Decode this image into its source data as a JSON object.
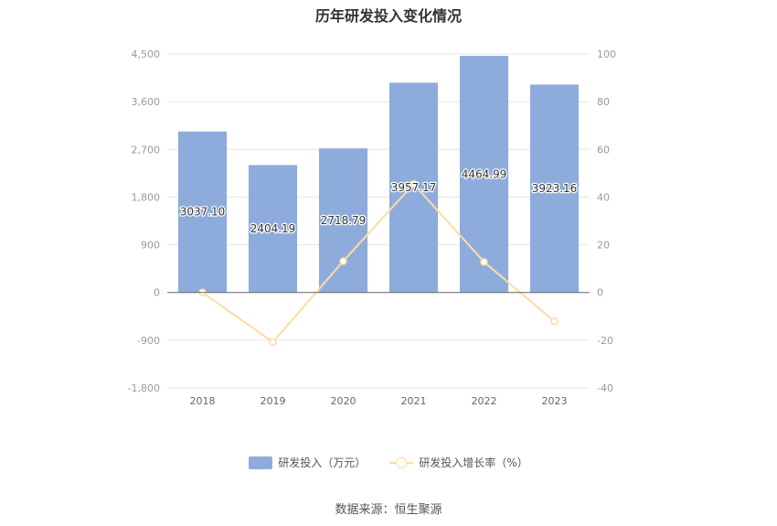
{
  "title": "历年研发投入变化情况",
  "source": "数据来源：恒生聚源",
  "chart_data": {
    "type": "bar",
    "categories": [
      "2018",
      "2019",
      "2020",
      "2021",
      "2022",
      "2023"
    ],
    "series": [
      {
        "name": "研发投入（万元）",
        "type": "bar",
        "axis": "left",
        "values": [
          3037.1,
          2404.19,
          2718.79,
          3957.17,
          4464.99,
          3923.16
        ],
        "labels": [
          "3037.10",
          "2404.19",
          "2718.79",
          "3957.17",
          "4464.99",
          "3923.16"
        ],
        "color": "#8eacdb"
      },
      {
        "name": "研发投入增长率（%）",
        "type": "line",
        "axis": "right",
        "values": [
          0,
          -20.8,
          13.1,
          45.5,
          12.8,
          -12.1
        ],
        "color": "#fcdca5"
      }
    ],
    "y_left": {
      "min": -1800,
      "max": 4500,
      "ticks": [
        -1800,
        -900,
        0,
        900,
        1800,
        2700,
        3600,
        4500
      ],
      "tick_labels": [
        "-1,800",
        "-900",
        "0",
        "900",
        "1,800",
        "2,700",
        "3,600",
        "4,500"
      ]
    },
    "y_right": {
      "min": -40,
      "max": 100,
      "ticks": [
        -40,
        -20,
        0,
        20,
        40,
        60,
        80,
        100
      ],
      "tick_labels": [
        "-40",
        "-20",
        "0",
        "20",
        "40",
        "60",
        "80",
        "100"
      ]
    },
    "grid": true,
    "legend_position": "bottom"
  }
}
